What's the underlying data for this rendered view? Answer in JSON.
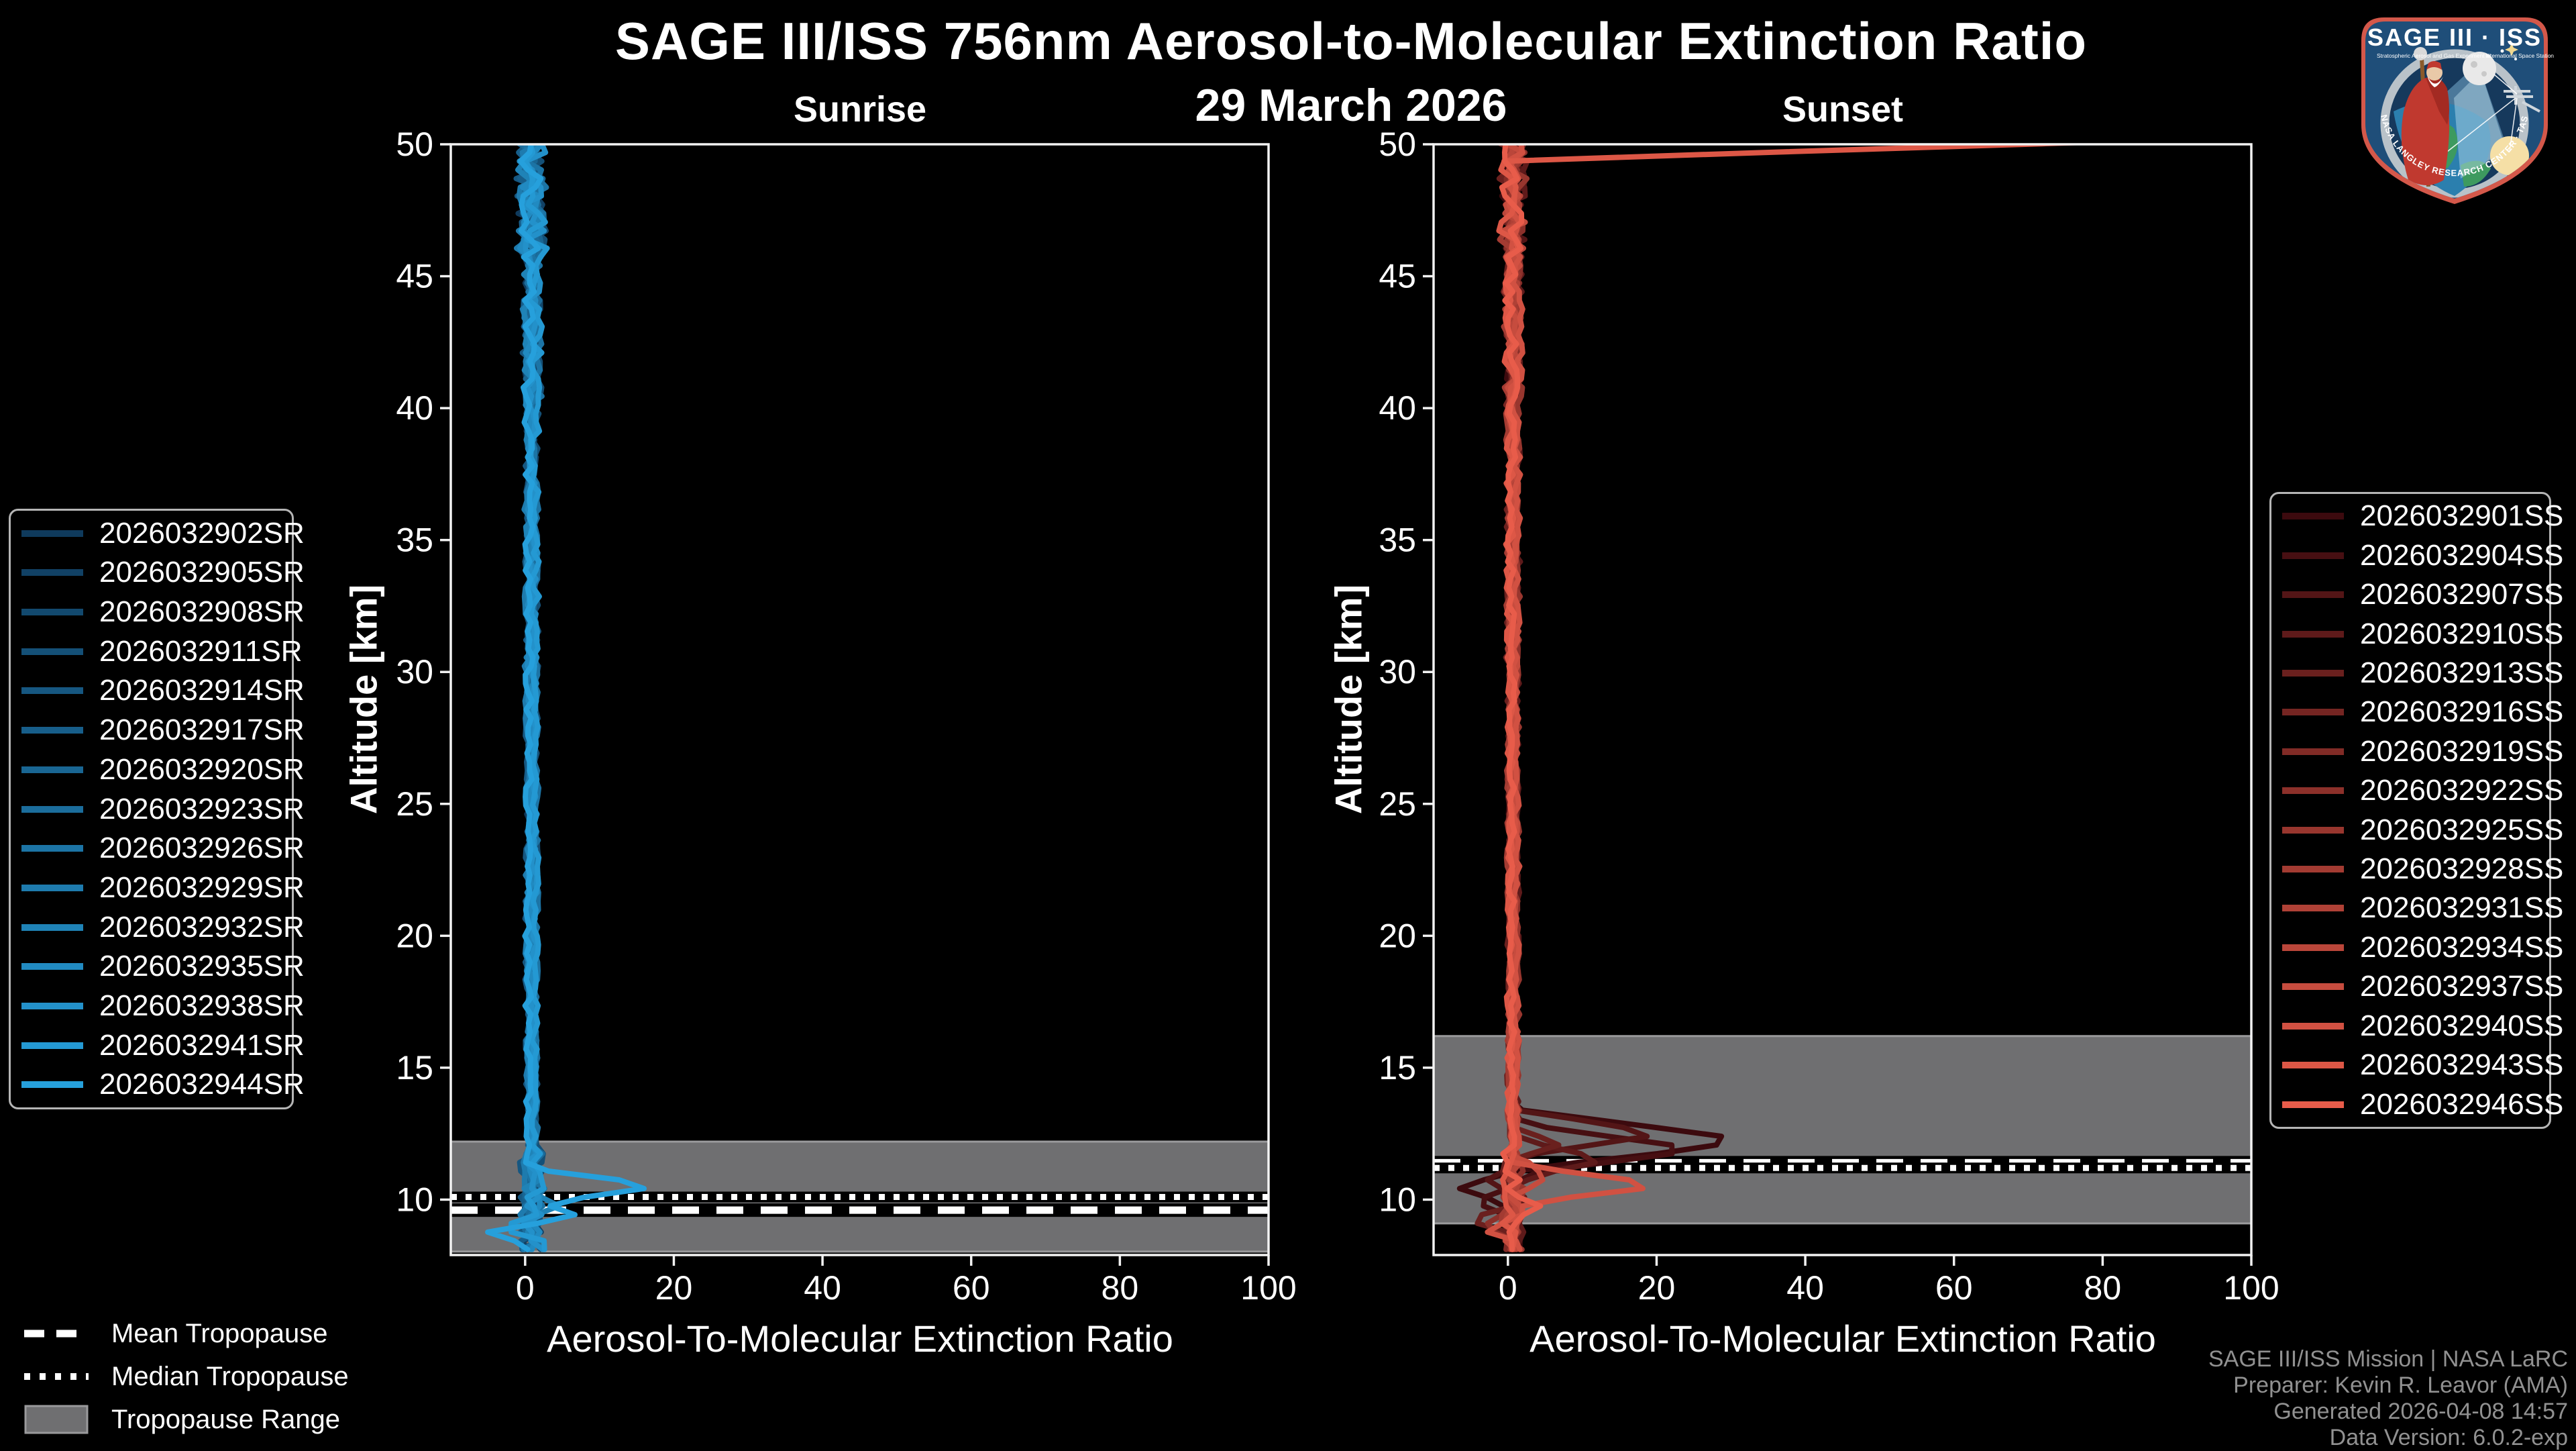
{
  "title": "SAGE III/ISS 756nm Aerosol-to-Molecular Extinction Ratio",
  "subtitle": "29 March 2026",
  "footer": [
    "SAGE III/ISS Mission | NASA LaRC",
    "Preparer: Kevin R. Leavor (AMA)",
    "Generated 2026-04-08 14:57",
    "Data Version: 6.0.2-exp"
  ],
  "tropopause_legend": [
    {
      "label": "Mean Tropopause",
      "style": "dashed"
    },
    {
      "label": "Median Tropopause",
      "style": "dotted"
    },
    {
      "label": "Tropopause Range",
      "style": "band"
    }
  ],
  "logo": {
    "title": "SAGE III · ISS",
    "subtitle_left": "Stratospheric Aerosol and Gas Experiment III",
    "subtitle_right": "International Space Station",
    "ring_text": "BALL · NASA LANGLEY RESEARCH CENTER · TAS-I · ESA"
  },
  "colors": {
    "background": "#000000",
    "text": "#ffffff",
    "footer_text": "#919191",
    "spine": "#f2f2f2",
    "band": "#6f6f71",
    "band_edge": "#9a9a9c",
    "legend_border": "#b5b5b5",
    "tropo_line": "#ffffff",
    "tropo_outline": "#000000"
  },
  "chart_data": [
    {
      "type": "line",
      "title": "Sunrise",
      "xlabel": "Aerosol-To-Molecular Extinction Ratio",
      "ylabel": "Altitude [km]",
      "xlim": [
        -10,
        100
      ],
      "ylim": [
        7.9,
        50
      ],
      "xticks": [
        0,
        20,
        40,
        60,
        80,
        100
      ],
      "yticks": [
        10,
        15,
        20,
        25,
        30,
        35,
        40,
        45,
        50
      ],
      "alt_top": 50.35,
      "alt_min": 8.05,
      "alt_step": 0.33,
      "base": 0.9,
      "noise_zones": [
        [
          46,
          51,
          1.7
        ],
        [
          40,
          46,
          0.95
        ],
        [
          30,
          40,
          0.6
        ],
        [
          12,
          30,
          0.5
        ],
        [
          7.5,
          12,
          1.3
        ]
      ],
      "tropopause": {
        "mean_km": 9.6,
        "median_km": 10.1,
        "range_km": [
          8.03,
          12.2
        ]
      },
      "series": [
        {
          "label": "2026032902SR",
          "color": "#0f3a5c",
          "seed": 1,
          "spikes": []
        },
        {
          "label": "2026032905SR",
          "color": "#114165",
          "seed": 2,
          "spikes": []
        },
        {
          "label": "2026032908SR",
          "color": "#12496e",
          "seed": 3,
          "spikes": []
        },
        {
          "label": "2026032911SR",
          "color": "#145077",
          "seed": 4,
          "spikes": []
        },
        {
          "label": "2026032914SR",
          "color": "#165781",
          "seed": 5,
          "spikes": []
        },
        {
          "label": "2026032917SR",
          "color": "#175e8a",
          "seed": 6,
          "spikes": []
        },
        {
          "label": "2026032920SR",
          "color": "#196693",
          "seed": 7,
          "spikes": []
        },
        {
          "label": "2026032923SR",
          "color": "#1b6d9c",
          "seed": 8,
          "spikes": []
        },
        {
          "label": "2026032926SR",
          "color": "#1c74a5",
          "seed": 9,
          "spikes": []
        },
        {
          "label": "2026032929SR",
          "color": "#1e7bae",
          "seed": 10,
          "spikes": []
        },
        {
          "label": "2026032932SR",
          "color": "#1f83b7",
          "seed": 11,
          "spikes": [
            {
              "alt": 9.8,
              "peak": 4,
              "width": 0.5
            }
          ]
        },
        {
          "label": "2026032935SR",
          "color": "#218ac1",
          "seed": 12,
          "spikes": []
        },
        {
          "label": "2026032938SR",
          "color": "#2391ca",
          "seed": 13,
          "spikes": []
        },
        {
          "label": "2026032941SR",
          "color": "#2499d3",
          "seed": 14,
          "spikes": [
            {
              "alt": 9.0,
              "peak": -4.5,
              "width": 0.5
            }
          ]
        },
        {
          "label": "2026032944SR",
          "color": "#26a0dc",
          "seed": 15,
          "spikes": [
            {
              "alt": 10.5,
              "peak": 17.5,
              "width": 0.7
            },
            {
              "alt": 9.4,
              "peak": 7.5,
              "width": 0.5
            },
            {
              "alt": 8.8,
              "peak": -5.5,
              "width": 0.45
            }
          ]
        }
      ]
    },
    {
      "type": "line",
      "title": "Sunset",
      "xlabel": "Aerosol-To-Molecular Extinction Ratio",
      "ylabel": "Altitude [km]",
      "xlim": [
        -10,
        100
      ],
      "ylim": [
        7.9,
        50
      ],
      "xticks": [
        0,
        20,
        40,
        60,
        80,
        100
      ],
      "yticks": [
        10,
        15,
        20,
        25,
        30,
        35,
        40,
        45,
        50
      ],
      "alt_top": 50.35,
      "alt_min": 8.05,
      "alt_step": 0.33,
      "base": 0.7,
      "noise_zones": [
        [
          46,
          51,
          1.5
        ],
        [
          40,
          46,
          0.9
        ],
        [
          30,
          40,
          0.55
        ],
        [
          12,
          30,
          0.45
        ],
        [
          7.5,
          12,
          1.2
        ]
      ],
      "tropopause": {
        "mean_km": 11.4,
        "median_km": 11.2,
        "range_km": [
          9.1,
          16.2
        ]
      },
      "series": [
        {
          "label": "2026032901SS",
          "color": "#3c0a0e",
          "seed": 101,
          "spikes": [
            {
              "alt": 12.25,
              "peak": 32.5,
              "width": 1.2
            },
            {
              "alt": 10.4,
              "peak": -6.5,
              "width": 0.8
            }
          ]
        },
        {
          "label": "2026032904SS",
          "color": "#470f12",
          "seed": 102,
          "spikes": [
            {
              "alt": 11.9,
              "peak": 26,
              "width": 1.0
            },
            {
              "alt": 9.9,
              "peak": -6,
              "width": 0.7
            }
          ]
        },
        {
          "label": "2026032907SS",
          "color": "#531516",
          "seed": 103,
          "spikes": [
            {
              "alt": 12.5,
              "peak": 20,
              "width": 0.9
            },
            {
              "alt": 10.8,
              "peak": -5,
              "width": 0.6
            }
          ]
        },
        {
          "label": "2026032910SS",
          "color": "#5e1a1a",
          "seed": 104,
          "spikes": [
            {
              "alt": 11.5,
              "peak": 13,
              "width": 0.8
            }
          ]
        },
        {
          "label": "2026032913SS",
          "color": "#6a201e",
          "seed": 105,
          "spikes": [
            {
              "alt": 12.1,
              "peak": 7,
              "width": 0.7
            },
            {
              "alt": 9.2,
              "peak": -5,
              "width": 0.6
            }
          ]
        },
        {
          "label": "2026032916SS",
          "color": "#752522",
          "seed": 106,
          "spikes": []
        },
        {
          "label": "2026032919SS",
          "color": "#812b26",
          "seed": 107,
          "spikes": []
        },
        {
          "label": "2026032922SS",
          "color": "#8c302a",
          "seed": 108,
          "spikes": [
            {
              "alt": 9.0,
              "peak": -4,
              "width": 0.5
            }
          ]
        },
        {
          "label": "2026032925SS",
          "color": "#98362e",
          "seed": 109,
          "spikes": []
        },
        {
          "label": "2026032928SS",
          "color": "#a33b32",
          "seed": 110,
          "spikes": []
        },
        {
          "label": "2026032931SS",
          "color": "#af4136",
          "seed": 111,
          "spikes": []
        },
        {
          "label": "2026032934SS",
          "color": "#ba463a",
          "seed": 112,
          "spikes": []
        },
        {
          "label": "2026032937SS",
          "color": "#c64c3e",
          "seed": 113,
          "spikes": [
            {
              "alt": 10.9,
              "peak": 6,
              "width": 0.6
            }
          ]
        },
        {
          "label": "2026032940SS",
          "color": "#d15142",
          "seed": 114,
          "spikes": [
            {
              "alt": 10.55,
              "peak": 19,
              "width": 0.8
            },
            {
              "alt": 8.9,
              "peak": -4,
              "width": 0.5
            }
          ]
        },
        {
          "label": "2026032943SS",
          "color": "#dd5746",
          "seed": 115,
          "spikes": [
            {
              "alt": 50.8,
              "peak": 160,
              "width": 1.4
            }
          ]
        },
        {
          "label": "2026032946SS",
          "color": "#e85c4a",
          "seed": 116,
          "spikes": [
            {
              "alt": 9.7,
              "peak": 5,
              "width": 0.5
            }
          ]
        }
      ]
    }
  ]
}
